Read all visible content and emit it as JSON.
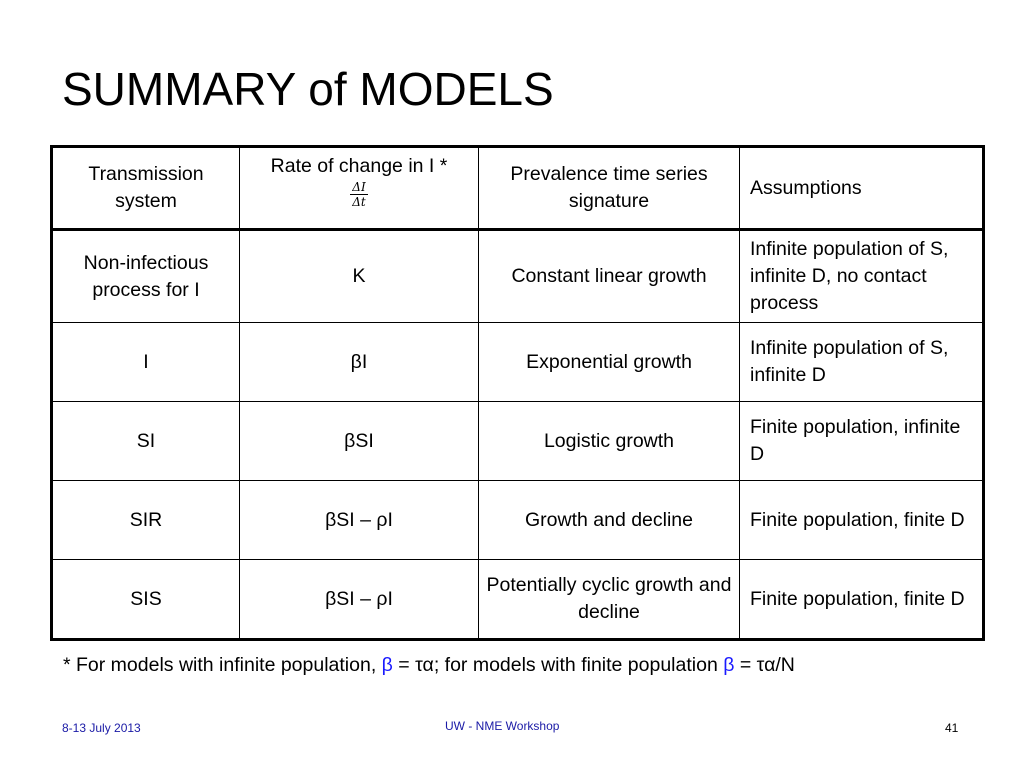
{
  "slide": {
    "title": "SUMMARY of MODELS"
  },
  "table": {
    "headers": {
      "transmission": "Transmission system",
      "rate": "Rate of change in I *",
      "rate_fraction_num": "ΔI",
      "rate_fraction_den": "Δt",
      "signature": "Prevalence time series signature",
      "assumptions": "Assumptions"
    },
    "rows": [
      {
        "system": "Non-infectious process for I",
        "rate": "K",
        "signature": "Constant linear growth",
        "assumptions": "Infinite population of S, infinite D, no contact process"
      },
      {
        "system": "I",
        "rate": "βI",
        "signature": "Exponential growth",
        "assumptions": "Infinite population of S, infinite D"
      },
      {
        "system": "SI",
        "rate": "βSI",
        "signature": "Logistic growth",
        "assumptions": "Finite population, infinite D"
      },
      {
        "system": "SIR",
        "rate": "βSI – ρI",
        "signature": "Growth and decline",
        "assumptions": "Finite population, finite D"
      },
      {
        "system": "SIS",
        "rate": "βSI – ρI",
        "signature": "Potentially cyclic growth and decline",
        "assumptions": "Finite population, finite D"
      }
    ]
  },
  "footnote": {
    "part1": "* For models with infinite population, ",
    "beta1": "β",
    "part2": " = τα; for models with finite population ",
    "beta2": "β",
    "part3": " = τα/N"
  },
  "footer": {
    "date": "8-13 July 2013",
    "event": "UW - NME Workshop",
    "page_number": "41"
  },
  "colors": {
    "accent_blue": "#1a1aff",
    "footer_blue": "#1a1aa6"
  }
}
